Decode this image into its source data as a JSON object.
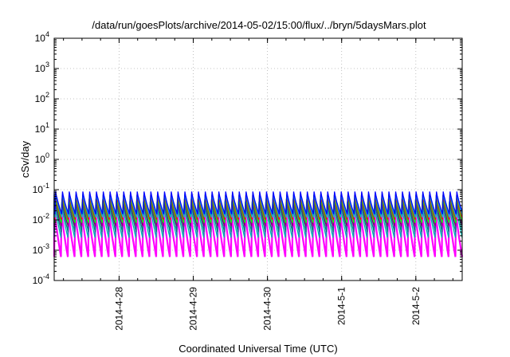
{
  "chart_data": {
    "type": "line",
    "title": "/data/run/goesPlots/archive/2014-05-02/15:00/flux/../bryn/5daysMars.plot",
    "xlabel": "Coordinated Universal Time (UTC)",
    "ylabel": "cSv/day",
    "y_scale": "log",
    "ylim": [
      0.0001,
      10000
    ],
    "xlim": [
      "2014-04-27 03:00",
      "2014-05-02 15:00"
    ],
    "grid": true,
    "legend": "none",
    "x_ticks": [
      {
        "label": "2014-4-28",
        "value": "2014-04-28 00:00"
      },
      {
        "label": "2014-4-29",
        "value": "2014-04-29 00:00"
      },
      {
        "label": "2014-4-30",
        "value": "2014-04-30 00:00"
      },
      {
        "label": "2014-5-1",
        "value": "2014-05-01 00:00"
      },
      {
        "label": "2014-5-2",
        "value": "2014-05-02 00:00"
      }
    ],
    "y_ticks": [
      {
        "base": "10",
        "exp": "-4",
        "value": 0.0001
      },
      {
        "base": "10",
        "exp": "-3",
        "value": 0.001
      },
      {
        "base": "10",
        "exp": "-2",
        "value": 0.01
      },
      {
        "base": "10",
        "exp": "-1",
        "value": 0.1
      },
      {
        "base": "10",
        "exp": "0",
        "value": 1
      },
      {
        "base": "10",
        "exp": "1",
        "value": 10
      },
      {
        "base": "10",
        "exp": "2",
        "value": 100
      },
      {
        "base": "10",
        "exp": "3",
        "value": 1000
      },
      {
        "base": "10",
        "exp": "4",
        "value": 10000
      }
    ],
    "sawtooth_period_hours": 2.2,
    "series": [
      {
        "color": "#ff00ff",
        "values": [
          0.02,
          0.0006
        ]
      },
      {
        "color": "#00b0b0",
        "values": [
          0.035,
          0.0025
        ]
      },
      {
        "color": "#008080",
        "values": [
          0.05,
          0.004
        ]
      },
      {
        "color": "#800080",
        "values": [
          0.05,
          0.006
        ]
      },
      {
        "color": "#00ff00",
        "values": [
          0.06,
          0.008
        ]
      },
      {
        "color": "#ff0000",
        "values": [
          0.07,
          0.01
        ]
      },
      {
        "color": "#00c0c0",
        "values": [
          0.08,
          0.012
        ]
      },
      {
        "color": "#0000ff",
        "values": [
          0.09,
          0.015
        ]
      }
    ]
  }
}
